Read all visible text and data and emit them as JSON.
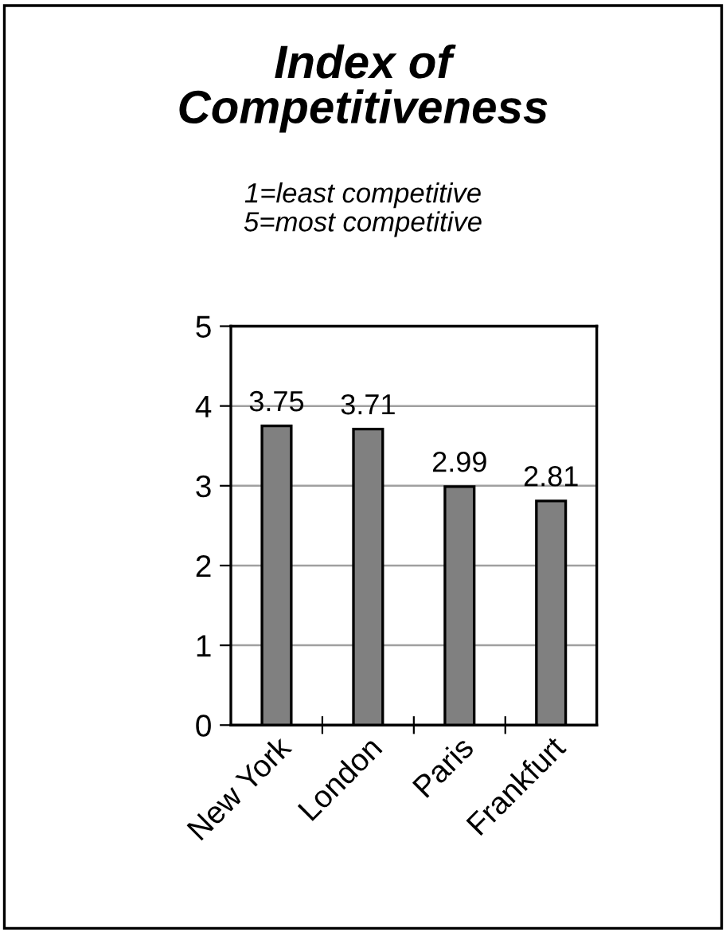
{
  "chart_data": {
    "type": "bar",
    "title": "Index of\nCompetitiveness",
    "subtitle": "1=least competitive\n5=most competitive",
    "categories": [
      "New York",
      "London",
      "Paris",
      "Frankfurt"
    ],
    "values": [
      3.75,
      3.71,
      2.99,
      2.81
    ],
    "color": "#808080",
    "ylim": [
      0,
      5
    ],
    "yticks": [
      0,
      1,
      2,
      3,
      4,
      5
    ],
    "grid": "y",
    "data_labels": true
  }
}
